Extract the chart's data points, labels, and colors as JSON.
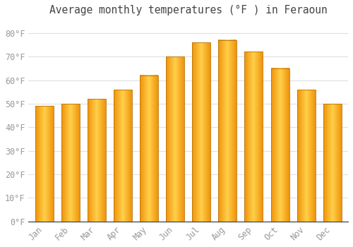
{
  "title": "Average monthly temperatures (°F ) in Feraoun",
  "months": [
    "Jan",
    "Feb",
    "Mar",
    "Apr",
    "May",
    "Jun",
    "Jul",
    "Aug",
    "Sep",
    "Oct",
    "Nov",
    "Dec"
  ],
  "values": [
    49,
    50,
    52,
    56,
    62,
    70,
    76,
    77,
    72,
    65,
    56,
    50
  ],
  "bar_color_center": "#FFD04A",
  "bar_color_edge": "#F0920A",
  "bar_border_color": "#B8740A",
  "background_color": "#FFFFFF",
  "grid_color": "#E0E0E0",
  "tick_label_color": "#999999",
  "title_color": "#444444",
  "ytick_labels": [
    "0°F",
    "10°F",
    "20°F",
    "30°F",
    "40°F",
    "50°F",
    "60°F",
    "70°F",
    "80°F"
  ],
  "ytick_values": [
    0,
    10,
    20,
    30,
    40,
    50,
    60,
    70,
    80
  ],
  "ylim": [
    0,
    85
  ],
  "title_fontsize": 10.5,
  "tick_fontsize": 8.5,
  "bar_width": 0.7
}
